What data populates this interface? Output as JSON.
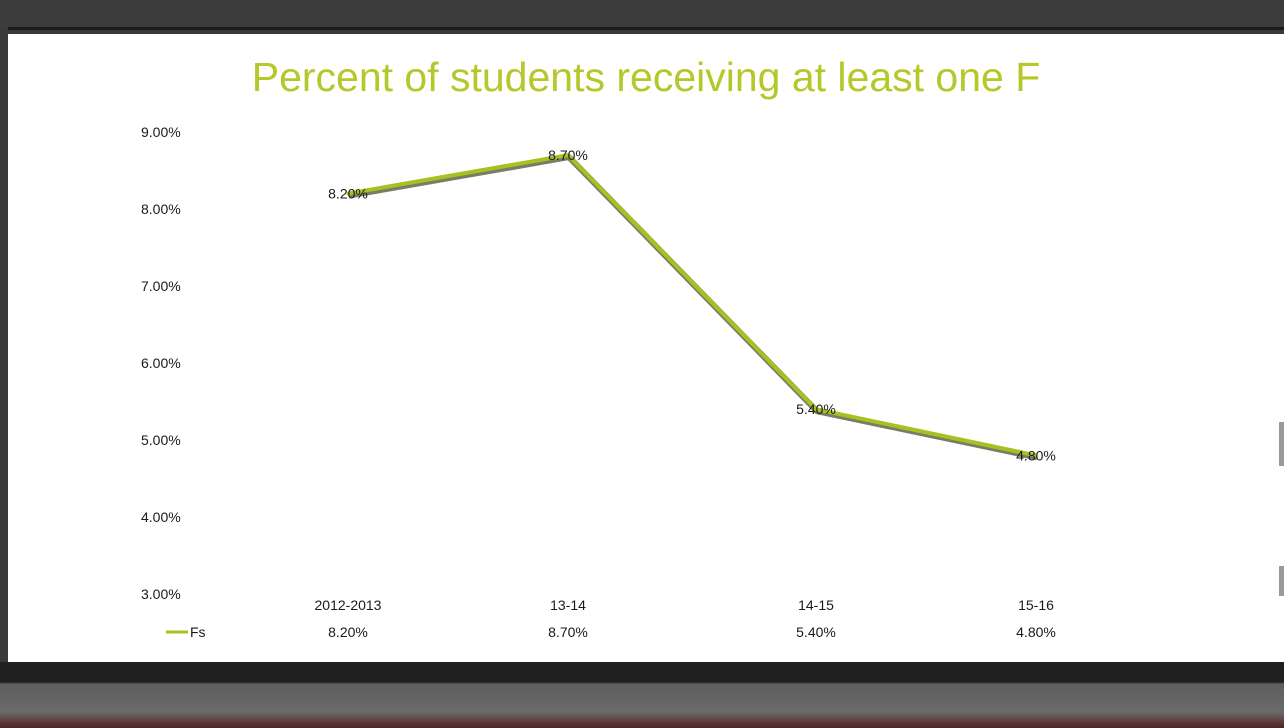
{
  "chart_data": {
    "type": "line",
    "title": "Percent of students receiving at least one F",
    "categories": [
      "2012-2013",
      "13-14",
      "14-15",
      "15-16"
    ],
    "series": [
      {
        "name": "Fs",
        "values": [
          8.2,
          8.7,
          5.4,
          4.8
        ],
        "labels": [
          "8.20%",
          "8.70%",
          "5.40%",
          "4.80%"
        ]
      }
    ],
    "ylim": [
      3,
      9
    ],
    "yticks": [
      "3.00%",
      "4.00%",
      "5.00%",
      "6.00%",
      "7.00%",
      "8.00%",
      "9.00%"
    ],
    "grid": false,
    "legend": "data-table-below",
    "colors": {
      "line": "#a8c020",
      "line_shadow": "#7c7c66",
      "title": "#b5c82a"
    }
  }
}
